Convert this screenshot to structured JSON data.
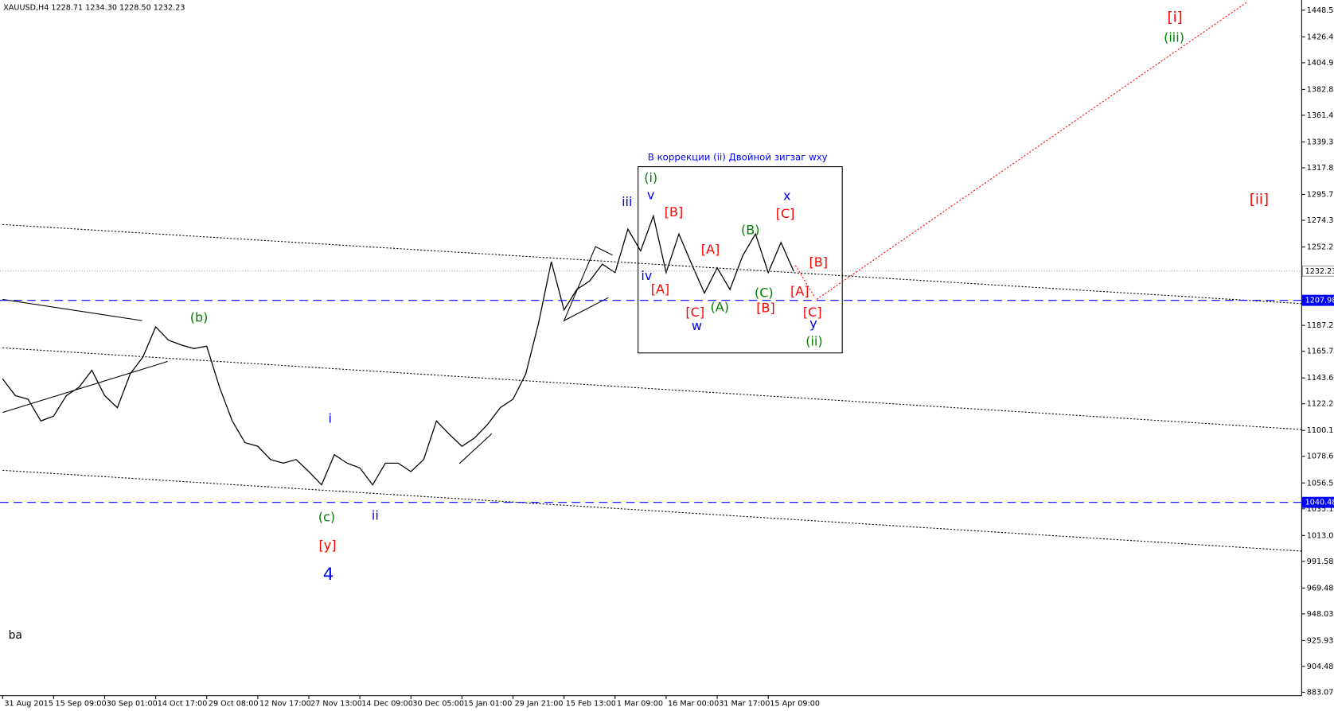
{
  "chart_data": {
    "type": "line",
    "header": "XAUUSD,H4  1228.71 1234.30 1228.50 1232.23",
    "box_title": "В коррекции (ii) Двойной зигзаг wxy",
    "xlim": [
      -0.2,
      101.8
    ],
    "ylim": [
      880.2,
      1457.0
    ],
    "grid": false,
    "xticks": [
      {
        "value": 0,
        "label": "31 Aug 2015"
      },
      {
        "value": 4,
        "label": "15 Sep 09:00"
      },
      {
        "value": 8,
        "label": "30 Sep 01:00"
      },
      {
        "value": 12,
        "label": "14 Oct 17:00"
      },
      {
        "value": 16,
        "label": "29 Oct 08:00"
      },
      {
        "value": 20,
        "label": "12 Nov 17:00"
      },
      {
        "value": 24,
        "label": "27 Nov 13:00"
      },
      {
        "value": 28,
        "label": "14 Dec 09:00"
      },
      {
        "value": 32,
        "label": "30 Dec 05:00"
      },
      {
        "value": 36,
        "label": "15 Jan 01:00"
      },
      {
        "value": 40,
        "label": "29 Jan 21:00"
      },
      {
        "value": 44,
        "label": "15 Feb 13:00"
      },
      {
        "value": 48,
        "label": "1 Mar 09:00"
      },
      {
        "value": 52,
        "label": "16 Mar 00:00"
      },
      {
        "value": 56,
        "label": "31 Mar 17:00"
      },
      {
        "value": 60,
        "label": "15 Apr 09:00"
      }
    ],
    "yticks": [
      1448.55,
      1426.45,
      1404.98,
      1382.88,
      1361.43,
      1339.33,
      1317.88,
      1295.78,
      1274.33,
      1252.23,
      1187.23,
      1165.78,
      1143.68,
      1122.23,
      1100.13,
      1078.68,
      1056.58,
      1035.13,
      1013.03,
      991.58,
      969.48,
      948.03,
      925.93,
      904.48,
      883.07
    ],
    "series": [
      {
        "name": "XAUUSD",
        "color": "#000000",
        "x": [
          0,
          1,
          2,
          3,
          4,
          5,
          6,
          7,
          8,
          9,
          10,
          11,
          12,
          13,
          14,
          15,
          16,
          17,
          18,
          19,
          20,
          21,
          22,
          23,
          24,
          25,
          26,
          27,
          28,
          29,
          30,
          31,
          32,
          33,
          34,
          35,
          36,
          37,
          38,
          39,
          40,
          41,
          42,
          43,
          44,
          45,
          46,
          47,
          48,
          49,
          50,
          51,
          52,
          53,
          54,
          55,
          56,
          57,
          58,
          59,
          60,
          61,
          62
        ],
        "values": [
          1143,
          1129,
          1126,
          1108,
          1112,
          1129,
          1136,
          1150,
          1129,
          1119,
          1147,
          1161,
          1186,
          1175,
          1171,
          1168,
          1170,
          1136,
          1108,
          1090,
          1087,
          1076,
          1073,
          1076,
          1066,
          1055,
          1080,
          1073,
          1069,
          1055,
          1073,
          1073,
          1066,
          1076,
          1108,
          1097,
          1087,
          1094,
          1105,
          1119,
          1126,
          1147,
          1189,
          1240,
          1200,
          1217,
          1224,
          1238,
          1231,
          1267,
          1249,
          1278,
          1231,
          1263,
          1238,
          1214,
          1235,
          1217,
          1245,
          1263,
          1231,
          1256,
          1232
        ]
      }
    ],
    "last_price": 1232.23,
    "hlines": [
      {
        "value": 1207.98,
        "color": "#0000ff"
      },
      {
        "value": 1040.48,
        "color": "#0000ff"
      }
    ],
    "annotations": [
      {
        "text": "(i)",
        "color": "#008000"
      },
      {
        "text": "v",
        "color": "#0000ff"
      },
      {
        "text": "iii",
        "color": "#0000ff"
      },
      {
        "text": "[B]",
        "color": "#ff0000"
      },
      {
        "text": "iv",
        "color": "#0000ff"
      },
      {
        "text": "[A]",
        "color": "#ff0000"
      },
      {
        "text": "[C]",
        "color": "#ff0000"
      },
      {
        "text": "w",
        "color": "#0000ff"
      },
      {
        "text": "[A]",
        "color": "#ff0000"
      },
      {
        "text": "(A)",
        "color": "#008000"
      },
      {
        "text": "(B)",
        "color": "#008000"
      },
      {
        "text": "(C)",
        "color": "#008000"
      },
      {
        "text": "[B]",
        "color": "#ff0000"
      },
      {
        "text": "x",
        "color": "#0000ff"
      },
      {
        "text": "[C]",
        "color": "#ff0000"
      },
      {
        "text": "[B]",
        "color": "#ff0000"
      },
      {
        "text": "[A]",
        "color": "#ff0000"
      },
      {
        "text": "[C]",
        "color": "#ff0000"
      },
      {
        "text": "y",
        "color": "#0000ff"
      },
      {
        "text": "(ii)",
        "color": "#008000"
      },
      {
        "text": "[i]",
        "color": "#ff0000"
      },
      {
        "text": "(iii)",
        "color": "#008000"
      },
      {
        "text": "[ii]",
        "color": "#ff0000"
      },
      {
        "text": "(b)",
        "color": "#008000"
      },
      {
        "text": "i",
        "color": "#0000ff"
      },
      {
        "text": "(c)",
        "color": "#008000"
      },
      {
        "text": "ii",
        "color": "#0000ff"
      },
      {
        "text": "[y]",
        "color": "#ff0000"
      },
      {
        "text": "4",
        "color": "#0000ff"
      },
      {
        "text": "ba",
        "color": "#000000"
      }
    ]
  }
}
